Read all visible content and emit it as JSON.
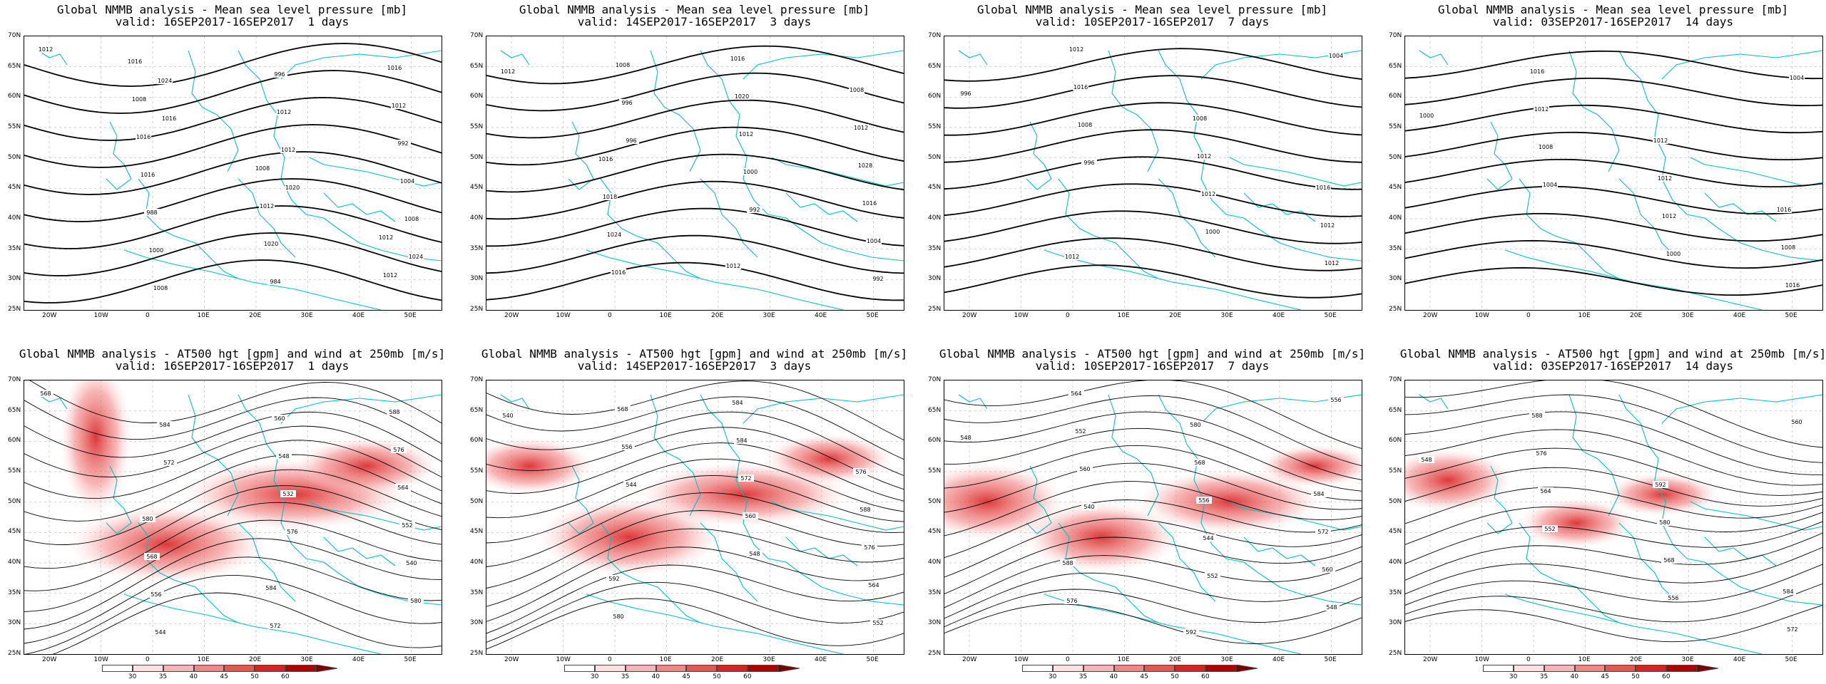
{
  "rows": [
    {
      "variable": "mslp",
      "panels": [
        {
          "title1": "Global NMMB analysis - Mean sea level pressure [mb]",
          "title2": "valid: 16SEP2017-16SEP2017  1 days",
          "contour_labels": [
            "1012",
            "1016",
            "1020",
            "1024",
            "1024",
            "1012",
            "1008",
            "1008",
            "1012",
            "1004",
            "1000",
            "996",
            "992",
            "988",
            "984",
            "1012",
            "1016",
            "1020",
            "1016",
            "1016",
            "1012",
            "1012",
            "1008",
            "1008",
            "1012",
            "1016"
          ]
        },
        {
          "title1": "Global NMMB analysis - Mean sea level pressure [mb]",
          "title2": "valid: 14SEP2017-16SEP2017  3 days",
          "contour_labels": [
            "1012",
            "996",
            "992",
            "992",
            "996",
            "1000",
            "1004",
            "1008",
            "1012",
            "1016",
            "1016",
            "1020",
            "1028",
            "1024",
            "1016",
            "1012",
            "1018",
            "1012",
            "1008",
            "1016"
          ]
        },
        {
          "title1": "Global NMMB analysis - Mean sea level pressure [mb]",
          "title2": "valid: 10SEP2017-16SEP2017  7 days",
          "contour_labels": [
            "996",
            "996",
            "1000",
            "1004",
            "1008",
            "1012",
            "1012",
            "1016",
            "1012",
            "1012",
            "1012",
            "1008",
            "1016",
            "1012"
          ]
        },
        {
          "title1": "Global NMMB analysis - Mean sea level pressure [mb]",
          "title2": "valid: 03SEP2017-16SEP2017  14 days",
          "contour_labels": [
            "1000",
            "1004",
            "1000",
            "1004",
            "1008",
            "1012",
            "1016",
            "1012",
            "1012",
            "1008",
            "1016",
            "1012",
            "1016"
          ]
        }
      ]
    },
    {
      "variable": "z500_wind250",
      "panels": [
        {
          "title1": "Global NMMB analysis - AT500 hgt [gpm] and wind at 250mb [m/s]",
          "title2": "valid: 16SEP2017-16SEP2017  1 days",
          "contour_labels": [
            "568",
            "572",
            "576",
            "580",
            "584",
            "532",
            "540",
            "544",
            "548",
            "552",
            "556",
            "560",
            "564",
            "568",
            "572",
            "576",
            "580",
            "584",
            "588"
          ]
        },
        {
          "title1": "Global NMMB analysis - AT500 hgt [gpm] and wind at 250mb [m/s]",
          "title2": "valid: 14SEP2017-16SEP2017  3 days",
          "contour_labels": [
            "540",
            "544",
            "548",
            "552",
            "556",
            "560",
            "564",
            "568",
            "572",
            "576",
            "580",
            "584",
            "588",
            "592",
            "584",
            "576"
          ]
        },
        {
          "title1": "Global NMMB analysis - AT500 hgt [gpm] and wind at 250mb [m/s]",
          "title2": "valid: 10SEP2017-16SEP2017  7 days",
          "contour_labels": [
            "548",
            "540",
            "552",
            "556",
            "560",
            "544",
            "548",
            "552",
            "556",
            "560",
            "564",
            "568",
            "572",
            "576",
            "580",
            "584",
            "588",
            "592"
          ]
        },
        {
          "title1": "Global NMMB analysis - AT500 hgt [gpm] and wind at 250mb [m/s]",
          "title2": "valid: 03SEP2017-16SEP2017  14 days",
          "contour_labels": [
            "548",
            "552",
            "556",
            "560",
            "564",
            "568",
            "572",
            "576",
            "580",
            "584",
            "588",
            "592"
          ]
        }
      ]
    }
  ],
  "lat_labels": [
    "70N",
    "65N",
    "60N",
    "55N",
    "50N",
    "45N",
    "40N",
    "35N",
    "30N",
    "25N"
  ],
  "lon_labels": [
    "20W",
    "10W",
    "0",
    "10E",
    "20E",
    "30E",
    "40E",
    "50E"
  ],
  "colorbar": {
    "ticks": [
      "30",
      "35",
      "40",
      "45",
      "50",
      "60"
    ],
    "colors": [
      "#ffffff",
      "#fde0e0",
      "#f9b5b5",
      "#f28686",
      "#e85555",
      "#d92222",
      "#b00000",
      "#7a0000"
    ]
  },
  "colors": {
    "contour": "#000000",
    "coast": "#00c0c8",
    "grid": "#bbbbbb"
  }
}
